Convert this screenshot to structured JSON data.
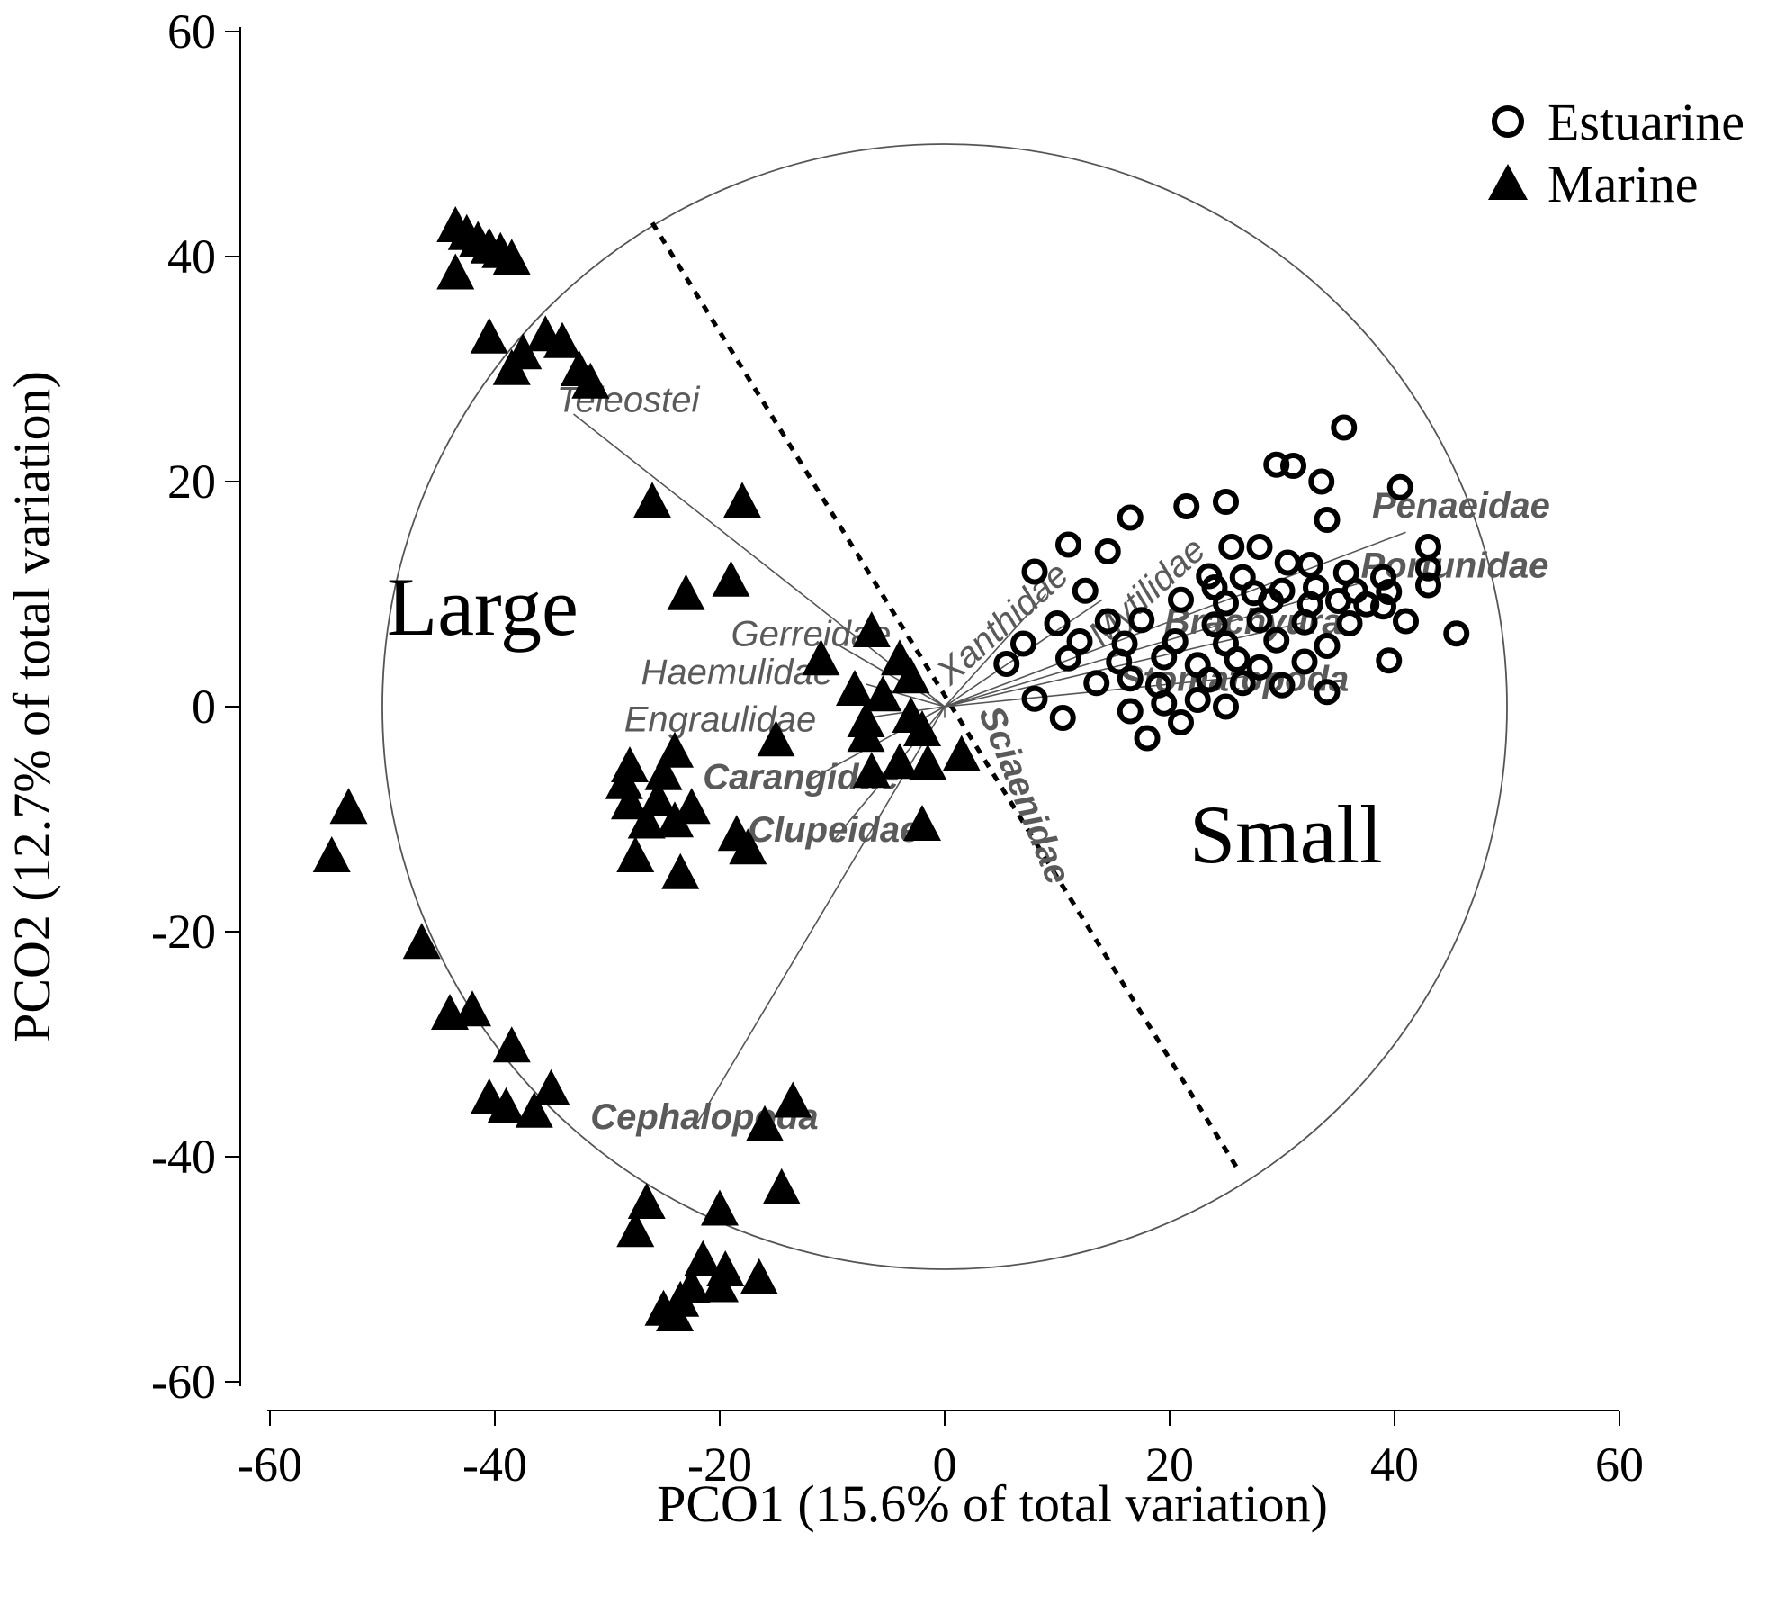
{
  "chart_data": {
    "type": "scatter",
    "xlabel": "PCO1 (15.6% of total variation)",
    "ylabel": "PCO2 (12.7% of total variation)",
    "xlim": [
      -60,
      60
    ],
    "ylim": [
      -60,
      60
    ],
    "x_ticks": [
      "-60",
      "-40",
      "-20",
      "0",
      "20",
      "40",
      "60"
    ],
    "y_ticks": [
      "-60",
      "-40",
      "-20",
      "0",
      "20",
      "40",
      "60"
    ],
    "grid": false,
    "legend_position": "top-right",
    "region_labels": [
      "Large",
      "Small"
    ],
    "correlation_circle_radius": 50,
    "divider_line": {
      "x": [
        -26,
        26
      ],
      "y": [
        43,
        -41
      ]
    },
    "series": [
      {
        "name": "Estuarine",
        "marker": "circle-open",
        "points": [
          [
            35.5,
            24.8
          ],
          [
            29.5,
            21.5
          ],
          [
            31,
            21.4
          ],
          [
            33.5,
            20
          ],
          [
            40.5,
            19.5
          ],
          [
            21.5,
            17.8
          ],
          [
            25,
            18.2
          ],
          [
            16.5,
            16.8
          ],
          [
            34,
            16.6
          ],
          [
            11,
            14.4
          ],
          [
            14.5,
            13.8
          ],
          [
            25.5,
            14.2
          ],
          [
            28,
            14.2
          ],
          [
            8,
            12
          ],
          [
            30.5,
            12.8
          ],
          [
            32.5,
            12.6
          ],
          [
            43,
            14.2
          ],
          [
            43,
            12.3
          ],
          [
            23.5,
            11.6
          ],
          [
            26.5,
            11.5
          ],
          [
            35.7,
            11.9
          ],
          [
            39,
            11.5
          ],
          [
            12.5,
            10.3
          ],
          [
            24,
            10.6
          ],
          [
            27.5,
            10.1
          ],
          [
            30,
            10.3
          ],
          [
            33,
            10.6
          ],
          [
            36.5,
            10.3
          ],
          [
            39.5,
            10.2
          ],
          [
            43,
            10.8
          ],
          [
            21,
            9.5
          ],
          [
            25,
            9.2
          ],
          [
            29,
            9.4
          ],
          [
            32.5,
            9.1
          ],
          [
            35,
            9.4
          ],
          [
            37.5,
            9.1
          ],
          [
            39,
            8.9
          ],
          [
            10,
            7.4
          ],
          [
            14.5,
            7.6
          ],
          [
            17.5,
            7.7
          ],
          [
            24,
            7.3
          ],
          [
            28,
            7.7
          ],
          [
            32,
            7.5
          ],
          [
            36,
            7.4
          ],
          [
            41,
            7.6
          ],
          [
            7,
            5.6
          ],
          [
            12,
            5.8
          ],
          [
            16,
            5.6
          ],
          [
            20.5,
            5.8
          ],
          [
            25,
            5.6
          ],
          [
            29.5,
            5.9
          ],
          [
            34,
            5.4
          ],
          [
            45.5,
            6.5
          ],
          [
            5.5,
            3.8
          ],
          [
            11,
            4.3
          ],
          [
            15.5,
            4
          ],
          [
            19.5,
            4.4
          ],
          [
            22.5,
            3.7
          ],
          [
            26,
            4.2
          ],
          [
            28,
            3.5
          ],
          [
            32,
            4
          ],
          [
            39.5,
            4.1
          ],
          [
            13.5,
            2.1
          ],
          [
            16.5,
            2.5
          ],
          [
            19,
            1.9
          ],
          [
            23.5,
            2.4
          ],
          [
            26.5,
            2.1
          ],
          [
            30,
            1.9
          ],
          [
            34,
            1.3
          ],
          [
            8,
            0.7
          ],
          [
            16.5,
            -0.4
          ],
          [
            19.5,
            0.3
          ],
          [
            22.5,
            0.6
          ],
          [
            25,
            0
          ],
          [
            10.5,
            -1
          ],
          [
            21,
            -1.4
          ],
          [
            18,
            -2.8
          ]
        ]
      },
      {
        "name": "Marine",
        "marker": "triangle-filled",
        "points": [
          [
            -43.5,
            42.5
          ],
          [
            -42.5,
            41.8
          ],
          [
            -41.5,
            41.2
          ],
          [
            -40.5,
            40.6
          ],
          [
            -39.5,
            40.2
          ],
          [
            -38.5,
            39.6
          ],
          [
            -43.5,
            38.3
          ],
          [
            -40.5,
            32.6
          ],
          [
            -35.5,
            32.8
          ],
          [
            -34,
            32.2
          ],
          [
            -37.5,
            31.2
          ],
          [
            -38.5,
            29.8
          ],
          [
            -32.5,
            29.7
          ],
          [
            -31.5,
            28.6
          ],
          [
            -26,
            18
          ],
          [
            -18,
            18
          ],
          [
            -19,
            11
          ],
          [
            -23,
            9.8
          ],
          [
            -6.5,
            6.5
          ],
          [
            -11,
            4
          ],
          [
            -4,
            4
          ],
          [
            -3,
            2.4
          ],
          [
            -8,
            1.3
          ],
          [
            -5.5,
            0.8
          ],
          [
            -7,
            -1.5
          ],
          [
            -3,
            -1.1
          ],
          [
            -2,
            -2.3
          ],
          [
            -7,
            -2.8
          ],
          [
            -15,
            -3.2
          ],
          [
            -6.5,
            -6
          ],
          [
            -4,
            -5.2
          ],
          [
            -1.5,
            -5.3
          ],
          [
            1.5,
            -4.5
          ],
          [
            -28,
            -5.5
          ],
          [
            -24,
            -4.2
          ],
          [
            -28.5,
            -7
          ],
          [
            -25,
            -6.2
          ],
          [
            -28,
            -8.8
          ],
          [
            -25.5,
            -8.5
          ],
          [
            -22.5,
            -9.2
          ],
          [
            -26.5,
            -10.5
          ],
          [
            -24,
            -10.4
          ],
          [
            -2,
            -10.7
          ],
          [
            -18.5,
            -11.6
          ],
          [
            -27.5,
            -13.5
          ],
          [
            -17.5,
            -12.8
          ],
          [
            -23.5,
            -15
          ],
          [
            -53,
            -9.2
          ],
          [
            -54.5,
            -13.5
          ],
          [
            -46.5,
            -21.2
          ],
          [
            -44,
            -27.5
          ],
          [
            -42,
            -27.2
          ],
          [
            -38.5,
            -30.4
          ],
          [
            -40.5,
            -35
          ],
          [
            -39,
            -35.8
          ],
          [
            -36.5,
            -36.2
          ],
          [
            -35,
            -34.2
          ],
          [
            -13.5,
            -35.3
          ],
          [
            -16,
            -37.4
          ],
          [
            -14.5,
            -43
          ],
          [
            -26.5,
            -44.3
          ],
          [
            -20,
            -44.9
          ],
          [
            -27.5,
            -46.8
          ],
          [
            -21.5,
            -49.4
          ],
          [
            -19.5,
            -50.3
          ],
          [
            -16.5,
            -51
          ],
          [
            -22.5,
            -51.8
          ],
          [
            -20,
            -51.7
          ],
          [
            -23.5,
            -53
          ],
          [
            -25,
            -53.8
          ],
          [
            -24,
            -54.3
          ]
        ]
      }
    ],
    "vectors": [
      {
        "label": "Teleostei",
        "end": [
          -33,
          26
        ],
        "label_at": [
          -34.5,
          26.2
        ],
        "bold": false,
        "rotate": 0
      },
      {
        "label": "Gerreidae",
        "end": [
          -9.5,
          5.5
        ],
        "label_at": [
          -19,
          5.4
        ],
        "bold": false,
        "rotate": 0
      },
      {
        "label": "Haemulidae",
        "end": [
          -7,
          2
        ],
        "label_at": [
          -27,
          2
        ],
        "bold": false,
        "rotate": 0
      },
      {
        "label": "Engraulidae",
        "end": [
          -7,
          -1
        ],
        "label_at": [
          -28.5,
          -2.2
        ],
        "bold": false,
        "rotate": 0
      },
      {
        "label": "Carangidae",
        "end": [
          -12,
          -6.5
        ],
        "label_at": [
          -21.5,
          -7.3
        ],
        "bold": true,
        "rotate": 0
      },
      {
        "label": "Clupeidae",
        "end": [
          -10,
          -12
        ],
        "label_at": [
          -17.5,
          -12
        ],
        "bold": true,
        "rotate": 0
      },
      {
        "label": "Cephalopoda",
        "end": [
          -22,
          -37
        ],
        "label_at": [
          -31.5,
          -37.5
        ],
        "bold": true,
        "rotate": 0
      },
      {
        "label": "Xanthidae",
        "end": [
          9,
          10
        ],
        "label_at": [
          0.5,
          1.8
        ],
        "bold": false,
        "rotate": -42
      },
      {
        "label": "Mytilidae",
        "end": [
          14,
          9.5
        ],
        "label_at": [
          14,
          5.2
        ],
        "bold": false,
        "rotate": -42
      },
      {
        "label": "Penaeidae",
        "end": [
          41,
          15.5
        ],
        "label_at": [
          38,
          16.8
        ],
        "bold": true,
        "rotate": 0
      },
      {
        "label": "Portunidae",
        "end": [
          37,
          11
        ],
        "label_at": [
          37,
          11.5
        ],
        "bold": true,
        "rotate": 0
      },
      {
        "label": "Brachyura",
        "end": [
          32,
          7.5
        ],
        "label_at": [
          19.5,
          6.5
        ],
        "bold": true,
        "rotate": 0
      },
      {
        "label": "Stomatopoda",
        "end": [
          30,
          3
        ],
        "label_at": [
          15.5,
          1.4
        ],
        "bold": true,
        "rotate": 0
      },
      {
        "label": "Sciaenidae",
        "end": [
          0,
          -1
        ],
        "label_at": [
          3,
          -0.5
        ],
        "bold": true,
        "rotate": 68
      }
    ]
  }
}
